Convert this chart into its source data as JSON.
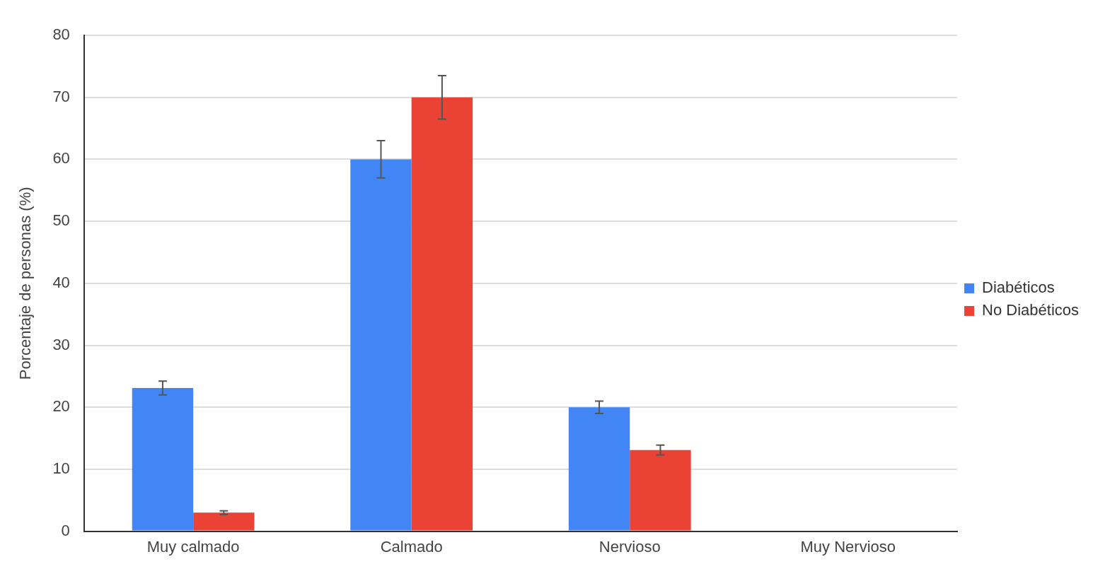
{
  "chart_data": {
    "type": "bar",
    "ylabel": "Porcentaje de personas (%)",
    "categories": [
      "Muy calmado",
      "Calmado",
      "Nervioso",
      "Muy Nervioso"
    ],
    "series": [
      {
        "name": "Diabéticos",
        "color": "#4285f4",
        "values": [
          23.1,
          60,
          20,
          0
        ],
        "errors": [
          1.1,
          3,
          1,
          null
        ]
      },
      {
        "name": "No Diabéticos",
        "color": "#ea4335",
        "values": [
          3,
          70,
          13.1,
          0
        ],
        "errors": [
          0.3,
          3.5,
          0.8,
          null
        ]
      }
    ],
    "ylim": [
      0,
      80
    ],
    "yticks": [
      0,
      10,
      20,
      30,
      40,
      50,
      60,
      70,
      80
    ],
    "grid": "y",
    "legend": "right"
  }
}
